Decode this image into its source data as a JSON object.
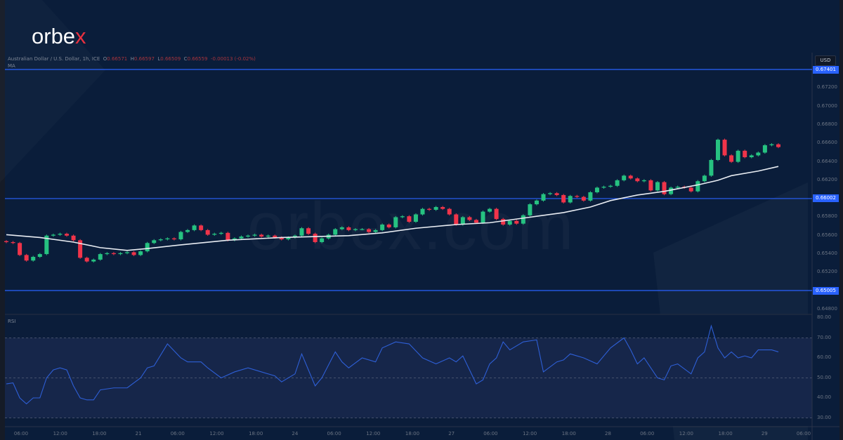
{
  "brand": {
    "logo_main": "orbe",
    "logo_x": "x",
    "watermark": "orbex.com"
  },
  "header": {
    "symbol": "Australian Dollar / U.S. Dollar, 1h, ICE",
    "o_label": "O",
    "o": "0.66571",
    "h_label": "H",
    "h": "0.66597",
    "l_label": "L",
    "l": "0.66509",
    "c_label": "C",
    "c": "0.66559",
    "change": "-0.00013 (-0.02%)",
    "ma_label": "MA"
  },
  "price_axis": {
    "currency": "USD",
    "ticks": [
      "0.67200",
      "0.67000",
      "0.66800",
      "0.66600",
      "0.66400",
      "0.66200",
      "0.65800",
      "0.65600",
      "0.65400",
      "0.65200",
      "0.64800"
    ],
    "levels": [
      {
        "label": "0.67401",
        "value": 0.67401
      },
      {
        "label": "0.66002",
        "value": 0.66002
      },
      {
        "label": "0.65005",
        "value": 0.65005
      }
    ]
  },
  "rsi": {
    "label": "RSI",
    "ticks": [
      "80.00",
      "70.00",
      "60.00",
      "50.00",
      "40.00",
      "30.00"
    ],
    "points": [
      [
        0,
        47
      ],
      [
        1,
        47.5
      ],
      [
        2,
        40
      ],
      [
        3,
        37
      ],
      [
        4,
        40
      ],
      [
        5,
        40
      ],
      [
        6,
        50
      ],
      [
        7,
        54
      ],
      [
        8,
        55
      ],
      [
        9,
        54
      ],
      [
        10,
        46
      ],
      [
        11,
        40
      ],
      [
        12,
        39
      ],
      [
        13,
        39
      ],
      [
        14,
        44
      ],
      [
        16,
        45
      ],
      [
        18,
        45
      ],
      [
        20,
        50
      ],
      [
        21,
        55
      ],
      [
        22,
        56
      ],
      [
        24,
        67
      ],
      [
        26,
        60
      ],
      [
        27,
        58
      ],
      [
        29,
        58
      ],
      [
        30,
        55
      ],
      [
        32,
        50
      ],
      [
        34,
        53
      ],
      [
        36,
        55
      ],
      [
        38,
        53
      ],
      [
        40,
        51
      ],
      [
        41,
        48
      ],
      [
        43,
        52
      ],
      [
        44,
        62
      ],
      [
        46,
        46
      ],
      [
        47,
        50
      ],
      [
        49,
        63
      ],
      [
        50,
        58
      ],
      [
        51,
        55
      ],
      [
        53,
        60
      ],
      [
        55,
        58
      ],
      [
        56,
        65
      ],
      [
        58,
        68
      ],
      [
        60,
        67
      ],
      [
        62,
        60
      ],
      [
        64,
        57
      ],
      [
        66,
        60
      ],
      [
        67,
        58
      ],
      [
        68,
        61
      ],
      [
        70,
        47
      ],
      [
        71,
        49
      ],
      [
        72,
        57
      ],
      [
        73,
        60
      ],
      [
        74,
        68
      ],
      [
        75,
        64
      ],
      [
        77,
        68
      ],
      [
        79,
        69
      ],
      [
        80,
        53
      ],
      [
        82,
        58
      ],
      [
        83,
        59
      ],
      [
        84,
        62
      ],
      [
        86,
        60
      ],
      [
        88,
        57
      ],
      [
        90,
        65
      ],
      [
        92,
        70
      ],
      [
        93,
        64
      ],
      [
        94,
        57
      ],
      [
        95,
        60
      ],
      [
        97,
        50
      ],
      [
        98,
        49
      ],
      [
        99,
        56
      ],
      [
        100,
        57
      ],
      [
        102,
        52
      ],
      [
        103,
        60
      ],
      [
        104,
        63
      ],
      [
        105,
        76
      ],
      [
        106,
        65
      ],
      [
        107,
        60
      ],
      [
        108,
        63
      ],
      [
        109,
        60
      ],
      [
        110,
        61
      ],
      [
        111,
        60
      ],
      [
        112,
        64
      ],
      [
        114,
        64
      ],
      [
        115,
        63
      ]
    ]
  },
  "ma_points": [
    [
      0,
      0.6561
    ],
    [
      5,
      0.6558
    ],
    [
      10,
      0.6553
    ],
    [
      14,
      0.6547
    ],
    [
      18,
      0.6544
    ],
    [
      21,
      0.6546
    ],
    [
      26,
      0.655
    ],
    [
      33,
      0.6555
    ],
    [
      41,
      0.6558
    ],
    [
      51,
      0.656
    ],
    [
      56,
      0.6563
    ],
    [
      61,
      0.6568
    ],
    [
      67,
      0.6572
    ],
    [
      72,
      0.6574
    ],
    [
      78,
      0.658
    ],
    [
      83,
      0.6585
    ],
    [
      87,
      0.6591
    ],
    [
      90,
      0.6598
    ],
    [
      94,
      0.6604
    ],
    [
      98,
      0.6608
    ],
    [
      103,
      0.6615
    ],
    [
      106,
      0.662
    ],
    [
      108,
      0.6625
    ],
    [
      112,
      0.663
    ],
    [
      115,
      0.6635
    ]
  ],
  "closes": [
    0.6553,
    0.6552,
    0.6539,
    0.6533,
    0.6537,
    0.654,
    0.656,
    0.6561,
    0.6562,
    0.656,
    0.6555,
    0.6536,
    0.6532,
    0.6534,
    0.654,
    0.6541,
    0.654,
    0.6541,
    0.6542,
    0.6539,
    0.6543,
    0.6552,
    0.6555,
    0.6556,
    0.6557,
    0.6556,
    0.6564,
    0.6566,
    0.6571,
    0.6566,
    0.6561,
    0.6562,
    0.6563,
    0.6555,
    0.6557,
    0.6559,
    0.656,
    0.6561,
    0.6559,
    0.656,
    0.6558,
    0.6556,
    0.6558,
    0.656,
    0.6568,
    0.6562,
    0.6553,
    0.6557,
    0.6561,
    0.6567,
    0.6569,
    0.6566,
    0.6567,
    0.6567,
    0.6564,
    0.6566,
    0.6572,
    0.6569,
    0.658,
    0.6581,
    0.6575,
    0.6583,
    0.6589,
    0.6588,
    0.6591,
    0.6589,
    0.6583,
    0.6572,
    0.658,
    0.6577,
    0.6574,
    0.6586,
    0.6589,
    0.6578,
    0.6572,
    0.6576,
    0.6573,
    0.6582,
    0.6594,
    0.6598,
    0.6605,
    0.6606,
    0.6604,
    0.6596,
    0.6603,
    0.6602,
    0.6598,
    0.6607,
    0.6612,
    0.6613,
    0.6614,
    0.662,
    0.6625,
    0.6622,
    0.6619,
    0.662,
    0.6609,
    0.6618,
    0.6605,
    0.6612,
    0.6613,
    0.6612,
    0.6608,
    0.6619,
    0.6625,
    0.6642,
    0.6664,
    0.6647,
    0.664,
    0.6652,
    0.6645,
    0.6647,
    0.665,
    0.6658,
    0.6659,
    0.6656
  ],
  "x_axis": [
    "06:00",
    "12:00",
    "18:00",
    "21",
    "06:00",
    "12:00",
    "18:00",
    "24",
    "06:00",
    "12:00",
    "18:00",
    "27",
    "06:00",
    "12:00",
    "18:00",
    "28",
    "06:00",
    "12:00",
    "18:00",
    "29",
    "06:00"
  ],
  "colors": {
    "up": "#26c281",
    "down": "#f0344a",
    "ma": "#e8ecf2",
    "rsi": "#2e5fd6",
    "level": "#2962ff",
    "bg": "#0a1d3a"
  }
}
